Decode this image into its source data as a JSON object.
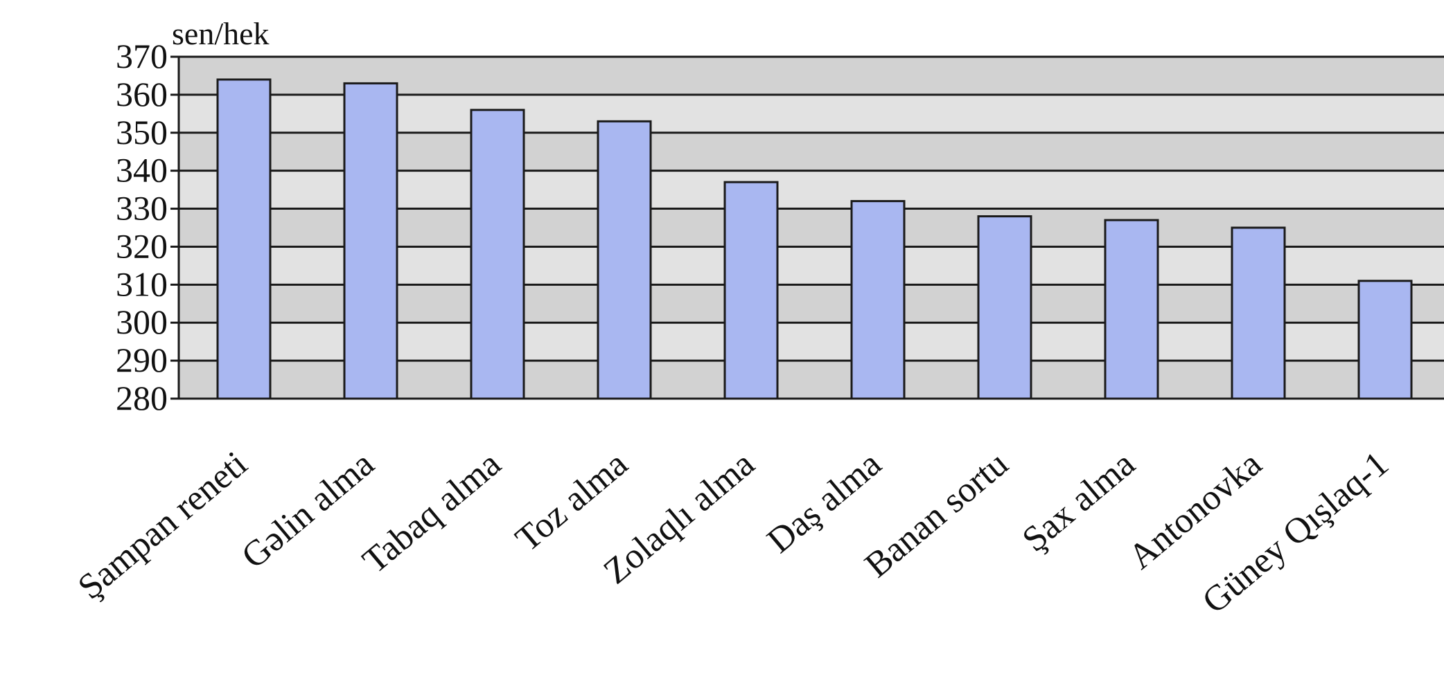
{
  "chart_data": {
    "type": "bar",
    "ylabel": "sen/hek",
    "categories": [
      "Şampan reneti",
      "Gəlin alma",
      "Tabaq alma",
      "Toz alma",
      "Zolaqlı alma",
      "Daş alma",
      "Banan sortu",
      "Şax alma",
      "Antonovka",
      "Güney Qışlaq-1"
    ],
    "values": [
      364,
      363,
      356,
      353,
      337,
      332,
      328,
      327,
      325,
      311
    ],
    "ylim": [
      280,
      370
    ],
    "yticks": [
      280,
      290,
      300,
      310,
      320,
      330,
      340,
      350,
      360,
      370
    ],
    "grid": true,
    "colors": {
      "bar": "#a9b7f1",
      "bar_stroke": "#1a1a1a",
      "plot_bg": "#d2d2d2",
      "band": "#e2e2e2",
      "gridline": "#1a1a1a"
    }
  }
}
